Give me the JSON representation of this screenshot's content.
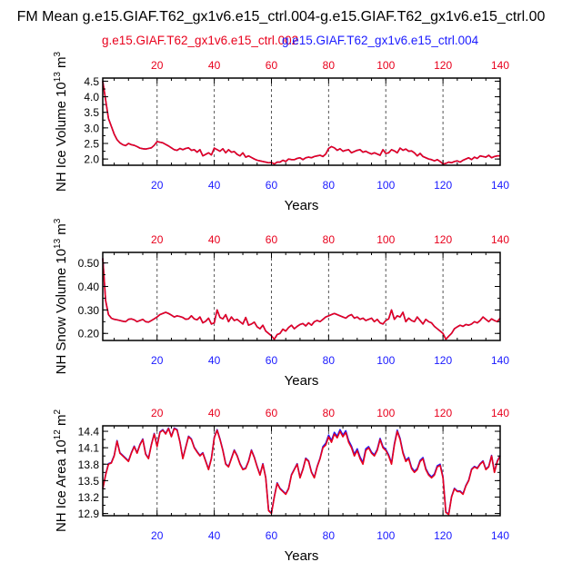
{
  "figure": {
    "title": "FM Mean g.e15.GIAF.T62_gx1v6.e15_ctrl.004-g.e15.GIAF.T62_gx1v6.e15_ctrl.00",
    "legend_red": "g.e15.GIAF.T62_gx1v6.e15_ctrl.002",
    "legend_blue": "g.e15.GIAF.T62_gx1v6.e15_ctrl.004",
    "colors": {
      "red": "#e8001c",
      "blue": "#1a1aff",
      "frame": "#000000",
      "grid": "#555555"
    }
  },
  "chart_data": [
    {
      "type": "line",
      "id": "ice-volume",
      "ylabel": "NH Ice Volume 10",
      "ylabel_exp": "13",
      "ylabel_unit": " m",
      "ylabel_unit_exp": "3",
      "xlabel": "Years",
      "xlim": [
        1,
        140
      ],
      "ylim": [
        1.8,
        4.6
      ],
      "xticks": [
        20,
        40,
        60,
        80,
        100,
        120,
        140
      ],
      "xtick_labels": [
        "20",
        "40",
        "60",
        "80",
        "100",
        "120",
        "140"
      ],
      "yticks": [
        2.0,
        2.5,
        3.0,
        3.5,
        4.0,
        4.5
      ],
      "ytick_labels": [
        "2.0",
        "2.5",
        "3.0",
        "3.5",
        "4.0",
        "4.5"
      ],
      "grid_x": [
        20,
        40,
        60,
        80,
        100,
        120
      ],
      "series": [
        {
          "name": "g.e15.GIAF.T62_gx1v6.e15_ctrl.002",
          "color": "#e8001c",
          "values": [
            4.5,
            3.9,
            3.3,
            3.05,
            2.8,
            2.62,
            2.52,
            2.46,
            2.43,
            2.5,
            2.46,
            2.44,
            2.4,
            2.35,
            2.33,
            2.32,
            2.34,
            2.36,
            2.44,
            2.56,
            2.54,
            2.52,
            2.47,
            2.42,
            2.36,
            2.3,
            2.28,
            2.34,
            2.3,
            2.34,
            2.36,
            2.28,
            2.3,
            2.22,
            2.3,
            2.1,
            2.15,
            2.2,
            2.13,
            2.35,
            2.3,
            2.25,
            2.33,
            2.2,
            2.3,
            2.22,
            2.24,
            2.15,
            2.1,
            2.2,
            2.06,
            2.1,
            2.05,
            2.0,
            1.96,
            1.94,
            1.92,
            1.9,
            1.88,
            1.89,
            1.84,
            1.9,
            1.9,
            1.96,
            1.92,
            2.0,
            1.98,
            1.98,
            2.02,
            2.04,
            1.98,
            2.04,
            2.06,
            2.04,
            2.08,
            2.1,
            2.12,
            2.08,
            2.16,
            2.34,
            2.4,
            2.36,
            2.28,
            2.33,
            2.25,
            2.28,
            2.3,
            2.2,
            2.24,
            2.28,
            2.3,
            2.22,
            2.25,
            2.2,
            2.16,
            2.2,
            2.16,
            2.12,
            2.3,
            2.18,
            2.2,
            2.3,
            2.26,
            2.2,
            2.35,
            2.28,
            2.32,
            2.25,
            2.26,
            2.2,
            2.1,
            2.18,
            2.08,
            2.04,
            2.0,
            1.98,
            1.94,
            1.98,
            1.92,
            1.84,
            1.86,
            1.9,
            1.88,
            1.92,
            1.94,
            1.9,
            1.96,
            2.0,
            2.04,
            1.98,
            2.06,
            2.02,
            2.1,
            2.08,
            2.06,
            2.12,
            2.04,
            2.08,
            2.1,
            2.1
          ]
        },
        {
          "name": "g.e15.GIAF.T62_gx1v6.e15_ctrl.004",
          "color": "#1a1aff",
          "values": [
            4.5,
            3.9,
            3.3,
            3.05,
            2.8,
            2.62,
            2.52,
            2.46,
            2.43,
            2.5,
            2.46,
            2.44,
            2.4,
            2.35,
            2.33,
            2.32,
            2.34,
            2.36,
            2.44,
            2.56,
            2.54,
            2.52,
            2.47,
            2.42,
            2.36,
            2.3,
            2.28,
            2.34,
            2.3,
            2.34,
            2.36,
            2.28,
            2.3,
            2.22,
            2.3,
            2.1,
            2.15,
            2.2,
            2.13,
            2.35,
            2.3,
            2.25,
            2.33,
            2.2,
            2.3,
            2.22,
            2.24,
            2.15,
            2.1,
            2.2,
            2.06,
            2.1,
            2.05,
            2.0,
            1.96,
            1.94,
            1.92,
            1.9,
            1.88,
            1.89,
            1.84,
            1.9,
            1.9,
            1.96,
            1.92,
            2.0,
            1.98,
            1.98,
            2.02,
            2.04,
            1.98,
            2.04,
            2.06,
            2.04,
            2.08,
            2.1,
            2.12,
            2.08,
            2.16,
            2.34,
            2.4,
            2.36,
            2.28,
            2.33,
            2.25,
            2.28,
            2.3,
            2.2,
            2.24,
            2.28,
            2.3,
            2.22,
            2.25,
            2.2,
            2.16,
            2.2,
            2.16,
            2.12,
            2.3,
            2.18,
            2.2,
            2.3,
            2.26,
            2.2,
            2.35,
            2.28,
            2.32,
            2.25,
            2.26,
            2.2,
            2.1,
            2.18,
            2.08,
            2.04,
            2.0,
            1.98,
            1.94,
            1.98,
            1.92,
            1.84,
            1.86,
            1.9,
            1.88,
            1.92,
            1.94,
            1.9,
            1.96,
            2.0,
            2.04,
            1.98,
            2.06,
            2.02,
            2.1,
            2.08,
            2.06,
            2.12,
            2.04,
            2.08,
            2.1,
            2.1
          ]
        }
      ]
    },
    {
      "type": "line",
      "id": "snow-volume",
      "ylabel": "NH Snow Volume 10",
      "ylabel_exp": "13",
      "ylabel_unit": " m",
      "ylabel_unit_exp": "3",
      "xlabel": "Years",
      "xlim": [
        1,
        140
      ],
      "ylim": [
        0.17,
        0.545
      ],
      "xticks": [
        20,
        40,
        60,
        80,
        100,
        120,
        140
      ],
      "xtick_labels": [
        "20",
        "40",
        "60",
        "80",
        "100",
        "120",
        "140"
      ],
      "yticks": [
        0.2,
        0.3,
        0.4,
        0.5
      ],
      "ytick_labels": [
        "0.20",
        "0.30",
        "0.40",
        "0.50"
      ],
      "grid_x": [
        20,
        40,
        60,
        80,
        100,
        120
      ],
      "series": [
        {
          "name": "g.e15.GIAF.T62_gx1v6.e15_ctrl.002",
          "color": "#e8001c",
          "values": [
            0.52,
            0.34,
            0.28,
            0.265,
            0.26,
            0.258,
            0.255,
            0.252,
            0.25,
            0.26,
            0.262,
            0.258,
            0.25,
            0.255,
            0.26,
            0.25,
            0.248,
            0.255,
            0.262,
            0.27,
            0.28,
            0.285,
            0.29,
            0.285,
            0.278,
            0.27,
            0.275,
            0.272,
            0.268,
            0.26,
            0.262,
            0.275,
            0.262,
            0.258,
            0.27,
            0.245,
            0.252,
            0.265,
            0.24,
            0.245,
            0.3,
            0.268,
            0.262,
            0.28,
            0.25,
            0.27,
            0.255,
            0.26,
            0.25,
            0.24,
            0.268,
            0.235,
            0.24,
            0.248,
            0.228,
            0.22,
            0.235,
            0.21,
            0.2,
            0.19,
            0.175,
            0.195,
            0.2,
            0.218,
            0.21,
            0.225,
            0.235,
            0.22,
            0.23,
            0.238,
            0.242,
            0.232,
            0.245,
            0.235,
            0.25,
            0.255,
            0.25,
            0.26,
            0.27,
            0.275,
            0.28,
            0.285,
            0.28,
            0.275,
            0.27,
            0.265,
            0.275,
            0.28,
            0.265,
            0.27,
            0.26,
            0.265,
            0.255,
            0.26,
            0.265,
            0.25,
            0.26,
            0.245,
            0.24,
            0.255,
            0.262,
            0.3,
            0.26,
            0.275,
            0.27,
            0.29,
            0.25,
            0.265,
            0.255,
            0.25,
            0.27,
            0.255,
            0.24,
            0.26,
            0.25,
            0.245,
            0.23,
            0.22,
            0.21,
            0.2,
            0.175,
            0.188,
            0.2,
            0.22,
            0.228,
            0.235,
            0.23,
            0.238,
            0.235,
            0.24,
            0.25,
            0.245,
            0.255,
            0.27,
            0.26,
            0.25,
            0.262,
            0.255,
            0.25,
            0.265
          ]
        },
        {
          "name": "g.e15.GIAF.T62_gx1v6.e15_ctrl.004",
          "color": "#1a1aff",
          "values": [
            0.52,
            0.34,
            0.28,
            0.265,
            0.26,
            0.258,
            0.255,
            0.252,
            0.25,
            0.26,
            0.262,
            0.258,
            0.25,
            0.255,
            0.26,
            0.25,
            0.248,
            0.255,
            0.262,
            0.27,
            0.28,
            0.285,
            0.29,
            0.285,
            0.278,
            0.27,
            0.275,
            0.272,
            0.268,
            0.26,
            0.262,
            0.275,
            0.262,
            0.258,
            0.27,
            0.245,
            0.252,
            0.265,
            0.24,
            0.245,
            0.3,
            0.268,
            0.262,
            0.28,
            0.25,
            0.27,
            0.255,
            0.26,
            0.25,
            0.24,
            0.268,
            0.235,
            0.24,
            0.248,
            0.228,
            0.22,
            0.235,
            0.21,
            0.2,
            0.19,
            0.175,
            0.195,
            0.2,
            0.218,
            0.21,
            0.225,
            0.235,
            0.22,
            0.23,
            0.238,
            0.242,
            0.232,
            0.245,
            0.235,
            0.25,
            0.255,
            0.25,
            0.26,
            0.27,
            0.275,
            0.28,
            0.285,
            0.28,
            0.275,
            0.27,
            0.265,
            0.275,
            0.28,
            0.265,
            0.27,
            0.26,
            0.265,
            0.255,
            0.26,
            0.265,
            0.25,
            0.26,
            0.245,
            0.24,
            0.255,
            0.262,
            0.3,
            0.26,
            0.275,
            0.27,
            0.29,
            0.25,
            0.265,
            0.255,
            0.25,
            0.27,
            0.255,
            0.24,
            0.26,
            0.25,
            0.245,
            0.23,
            0.22,
            0.21,
            0.2,
            0.175,
            0.188,
            0.2,
            0.22,
            0.228,
            0.235,
            0.23,
            0.238,
            0.235,
            0.24,
            0.25,
            0.245,
            0.255,
            0.27,
            0.26,
            0.25,
            0.262,
            0.255,
            0.25,
            0.265
          ]
        }
      ]
    },
    {
      "type": "line",
      "id": "ice-area",
      "ylabel": "NH Ice Area 10",
      "ylabel_exp": "12",
      "ylabel_unit": " m",
      "ylabel_unit_exp": "2",
      "xlabel": "Years",
      "xlim": [
        1,
        140
      ],
      "ylim": [
        12.86,
        14.5
      ],
      "xticks": [
        20,
        40,
        60,
        80,
        100,
        120,
        140
      ],
      "xtick_labels": [
        "20",
        "40",
        "60",
        "80",
        "100",
        "120",
        "140"
      ],
      "yticks": [
        12.9,
        13.2,
        13.5,
        13.8,
        14.1,
        14.4
      ],
      "ytick_labels": [
        "12.9",
        "13.2",
        "13.5",
        "13.8",
        "14.1",
        "14.4"
      ],
      "grid_x": [
        20,
        40,
        60,
        80,
        100,
        120
      ],
      "series": [
        {
          "name": "g.e15.GIAF.T62_gx1v6.e15_ctrl.002",
          "color": "#e8001c",
          "values": [
            13.35,
            13.6,
            13.8,
            13.82,
            13.95,
            14.22,
            14.0,
            13.95,
            13.9,
            13.85,
            14.0,
            14.12,
            14.0,
            14.15,
            14.25,
            13.98,
            13.9,
            14.15,
            14.35,
            14.12,
            14.38,
            14.42,
            14.35,
            14.45,
            14.3,
            14.45,
            14.42,
            14.2,
            13.9,
            14.1,
            14.3,
            14.25,
            14.1,
            14.02,
            13.95,
            14.0,
            13.85,
            13.7,
            13.9,
            14.28,
            14.42,
            14.25,
            14.05,
            13.8,
            13.75,
            13.9,
            14.05,
            13.95,
            13.8,
            13.7,
            13.72,
            13.85,
            14.05,
            13.92,
            13.75,
            13.6,
            13.8,
            13.55,
            12.95,
            12.9,
            13.2,
            13.45,
            13.35,
            13.3,
            13.25,
            13.35,
            13.6,
            13.7,
            13.8,
            13.55,
            13.7,
            13.9,
            13.85,
            13.65,
            13.55,
            13.75,
            13.9,
            14.1,
            14.15,
            14.3,
            14.2,
            14.35,
            14.28,
            14.4,
            14.3,
            14.38,
            14.2,
            14.1,
            13.95,
            14.05,
            13.9,
            13.8,
            14.05,
            14.1,
            14.0,
            13.95,
            14.05,
            14.25,
            14.1,
            14.05,
            13.95,
            13.8,
            14.15,
            14.4,
            14.25,
            14.0,
            13.85,
            13.9,
            13.72,
            13.65,
            13.7,
            13.85,
            13.9,
            13.7,
            13.6,
            13.55,
            13.6,
            13.75,
            13.78,
            13.55,
            12.92,
            12.88,
            13.2,
            13.35,
            13.3,
            13.3,
            13.25,
            13.4,
            13.5,
            13.7,
            13.75,
            13.72,
            13.8,
            13.85,
            13.7,
            13.75,
            13.95,
            13.65,
            13.85,
            13.95
          ]
        },
        {
          "name": "g.e15.GIAF.T62_gx1v6.e15_ctrl.004",
          "color": "#1a1aff",
          "values": [
            13.35,
            13.61,
            13.81,
            13.83,
            13.96,
            14.23,
            14.01,
            13.96,
            13.91,
            13.86,
            14.01,
            14.13,
            14.01,
            14.16,
            14.26,
            13.99,
            13.91,
            14.16,
            14.36,
            14.13,
            14.39,
            14.43,
            14.36,
            14.46,
            14.31,
            14.46,
            14.43,
            14.21,
            13.91,
            14.11,
            14.31,
            14.26,
            14.11,
            14.03,
            13.96,
            14.01,
            13.86,
            13.71,
            13.91,
            14.29,
            14.43,
            14.26,
            14.06,
            13.81,
            13.76,
            13.91,
            14.06,
            13.96,
            13.81,
            13.71,
            13.73,
            13.86,
            14.06,
            13.93,
            13.76,
            13.61,
            13.81,
            13.56,
            12.96,
            12.91,
            13.21,
            13.46,
            13.36,
            13.31,
            13.26,
            13.36,
            13.61,
            13.71,
            13.81,
            13.56,
            13.71,
            13.91,
            13.86,
            13.66,
            13.56,
            13.76,
            13.91,
            14.12,
            14.18,
            14.33,
            14.23,
            14.38,
            14.31,
            14.43,
            14.33,
            14.41,
            14.23,
            14.13,
            13.98,
            14.08,
            13.93,
            13.83,
            14.08,
            14.12,
            14.02,
            13.97,
            14.07,
            14.27,
            14.12,
            14.07,
            13.97,
            13.82,
            14.17,
            14.42,
            14.27,
            14.02,
            13.87,
            13.92,
            13.74,
            13.67,
            13.72,
            13.87,
            13.92,
            13.72,
            13.62,
            13.57,
            13.62,
            13.77,
            13.8,
            13.57,
            12.93,
            12.89,
            13.21,
            13.36,
            13.31,
            13.31,
            13.26,
            13.41,
            13.51,
            13.71,
            13.76,
            13.73,
            13.81,
            13.86,
            13.71,
            13.76,
            13.96,
            13.66,
            13.86,
            13.96
          ]
        }
      ]
    }
  ]
}
